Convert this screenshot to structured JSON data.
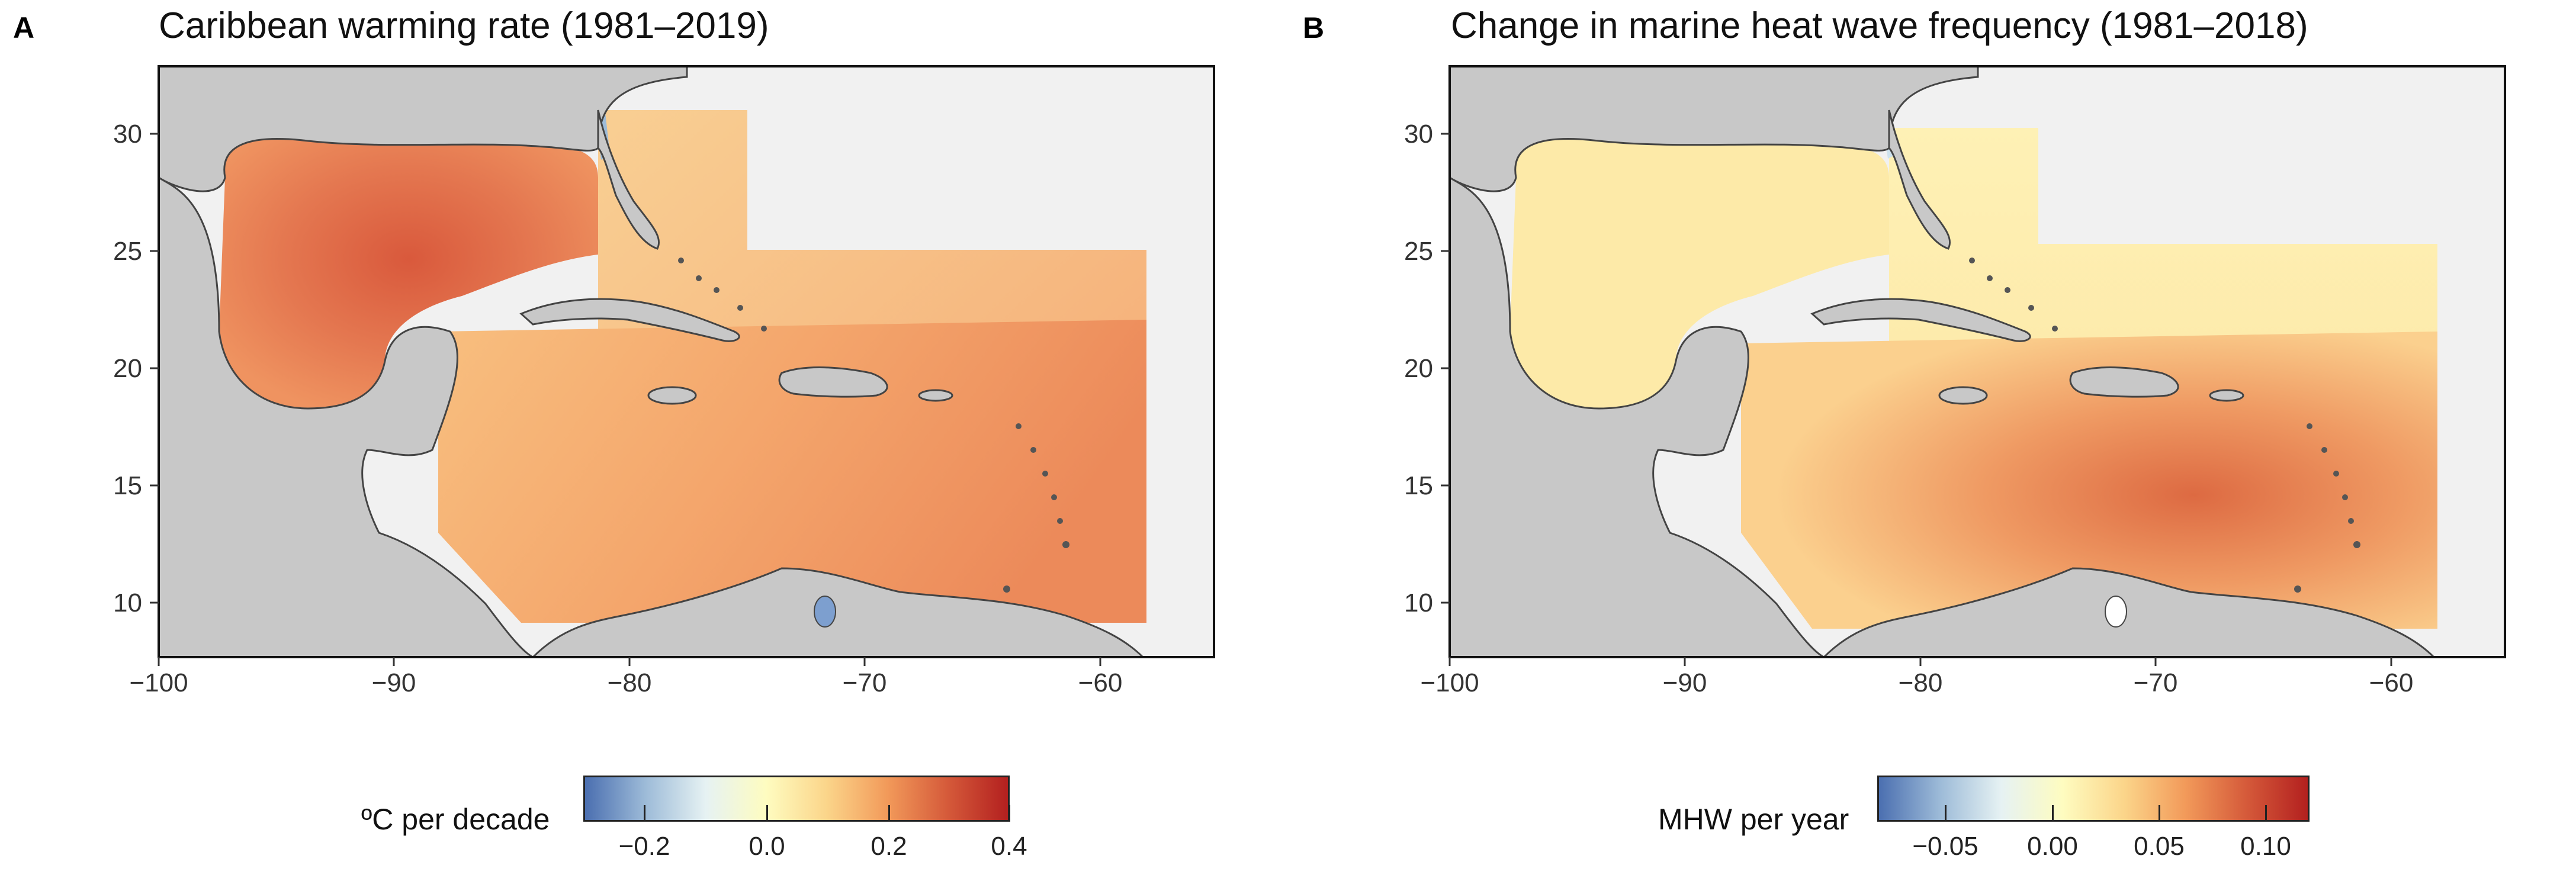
{
  "panels": [
    {
      "letter": "A",
      "title": "Caribbean warming rate (1981–2019)",
      "x_ticks": [
        "−100",
        "−90",
        "−80",
        "−70",
        "−60"
      ],
      "y_ticks": [
        "10",
        "15",
        "20",
        "25",
        "30"
      ],
      "legend": {
        "title": "ºC per decade",
        "ticks": [
          "−0.2",
          "0.0",
          "0.2",
          "0.4"
        ]
      }
    },
    {
      "letter": "B",
      "title": "Change in marine heat wave frequency (1981–2018)",
      "x_ticks": [
        "−100",
        "−90",
        "−80",
        "−70",
        "−60"
      ],
      "y_ticks": [
        "10",
        "15",
        "20",
        "25",
        "30"
      ],
      "legend": {
        "title": "MHW per year",
        "ticks": [
          "−0.05",
          "0.00",
          "0.05",
          "0.10"
        ]
      }
    }
  ],
  "colors": {
    "land": "#c8c8c8",
    "outside": "#f1f1f1",
    "coast": "#444444",
    "scale": [
      "#4b6fb0",
      "#9dbbd8",
      "#e6f2f3",
      "#fefcc0",
      "#fbd58a",
      "#f29a5a",
      "#d55a3a",
      "#b3201f"
    ]
  }
}
